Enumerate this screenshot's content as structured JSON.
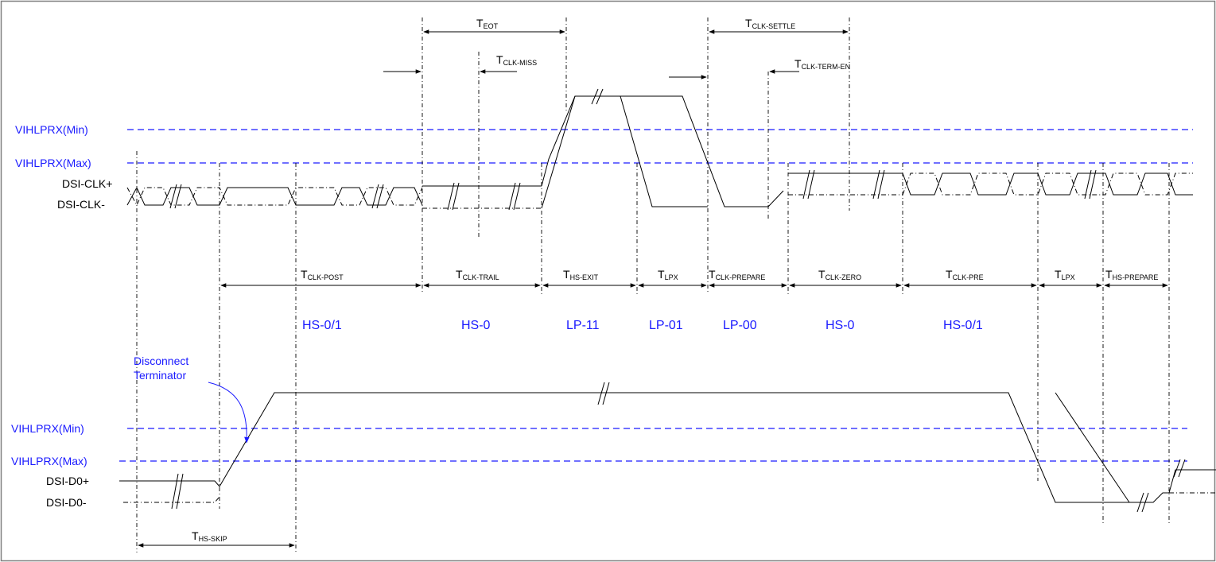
{
  "diagram": {
    "level_labels": {
      "clk_min": "VIHLPRX(Min)",
      "clk_max": "VIHLPRX(Max)",
      "data_min": "VIHLPRX(Min)",
      "data_max": "VIHLPRX(Max)"
    },
    "signals": {
      "clk_p": "DSI-CLK+",
      "clk_n": "DSI-CLK-",
      "d0_p": "DSI-D0+",
      "d0_n": "DSI-D0-"
    },
    "timing_params": {
      "eot": {
        "t": "T",
        "sub": "EOT"
      },
      "clk_miss": {
        "t": "T",
        "sub": "CLK-MISS"
      },
      "clk_settle": {
        "t": "T",
        "sub": "CLK-SETTLE"
      },
      "clk_term_en": {
        "t": "T",
        "sub": "CLK-TERM-EN"
      },
      "clk_post": {
        "t": "T",
        "sub": "CLK-POST"
      },
      "clk_trail": {
        "t": "T",
        "sub": "CLK-TRAIL"
      },
      "hs_exit": {
        "t": "T",
        "sub": "HS-EXIT"
      },
      "lpx1": {
        "t": "T",
        "sub": "LPX"
      },
      "clk_prepare": {
        "t": "T",
        "sub": "CLK-PREPARE"
      },
      "clk_zero": {
        "t": "T",
        "sub": "CLK-ZERO"
      },
      "clk_pre": {
        "t": "T",
        "sub": "CLK-PRE"
      },
      "lpx2": {
        "t": "T",
        "sub": "LPX"
      },
      "hs_prepare": {
        "t": "T",
        "sub": "HS-PREPARE"
      },
      "hs_skip": {
        "t": "T",
        "sub": "HS-SKIP"
      }
    },
    "states": [
      "HS-0/1",
      "HS-0",
      "LP-11",
      "LP-01",
      "LP-00",
      "HS-0",
      "HS-0/1"
    ],
    "annotation": {
      "line1": "Disconnect",
      "line2": "Terminator"
    },
    "colors": {
      "line": "#000000",
      "threshold": "#1a1aff",
      "frame": "#7f7f7f"
    }
  }
}
